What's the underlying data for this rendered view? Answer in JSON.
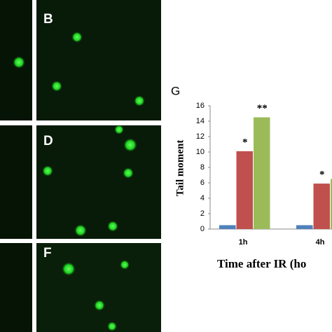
{
  "panel_labels": [
    "B",
    "D",
    "F"
  ],
  "chart_data": {
    "type": "bar",
    "panel_label": "G",
    "x_label": "Time after IR (ho",
    "y_label": "Tail moment",
    "categories": [
      "1h",
      "4h"
    ],
    "series": [
      {
        "color": "#4f81bd",
        "values": [
          0.5,
          0.5
        ],
        "significance": [
          null,
          null
        ]
      },
      {
        "color": "#c0504d",
        "values": [
          10.1,
          5.9
        ],
        "significance": [
          "*",
          "*"
        ]
      },
      {
        "color": "#9bbb59",
        "values": [
          14.5,
          6.5
        ],
        "significance": [
          "**",
          null
        ]
      }
    ],
    "ylim": [
      0,
      16
    ],
    "yticks": [
      0,
      2,
      4,
      6,
      8,
      10,
      12,
      14,
      16
    ]
  }
}
